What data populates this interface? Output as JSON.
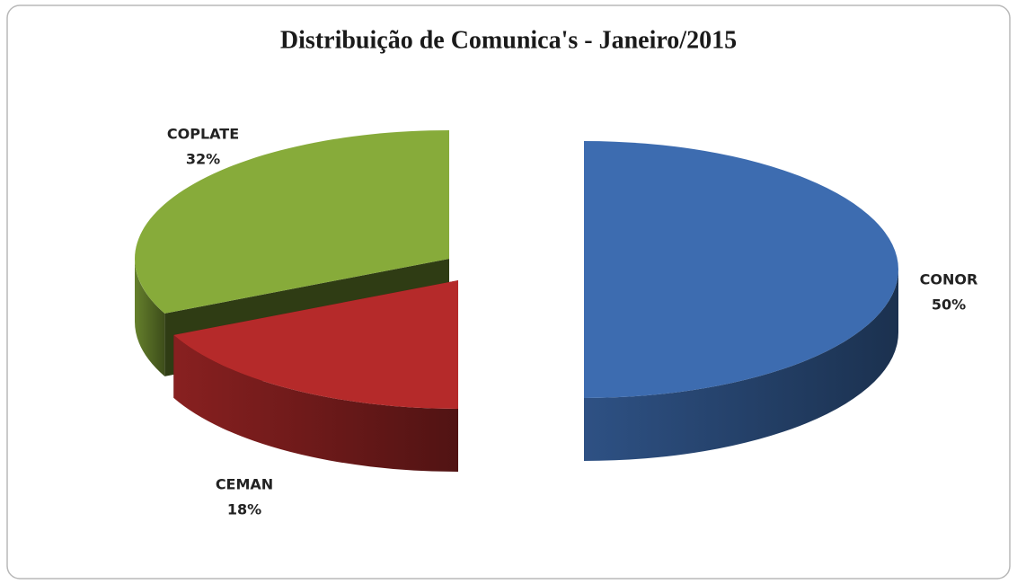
{
  "chart_data": {
    "type": "pie",
    "title": "Distribuição de Comunica's - Janeiro/2015",
    "categories": [
      "CONOR",
      "CEMAN",
      "COPLATE"
    ],
    "values": [
      50,
      18,
      32
    ],
    "value_labels": [
      "50%",
      "18%",
      "32%"
    ],
    "colors": [
      "#3d6cb0",
      "#b52a2a",
      "#87ab3a"
    ]
  }
}
